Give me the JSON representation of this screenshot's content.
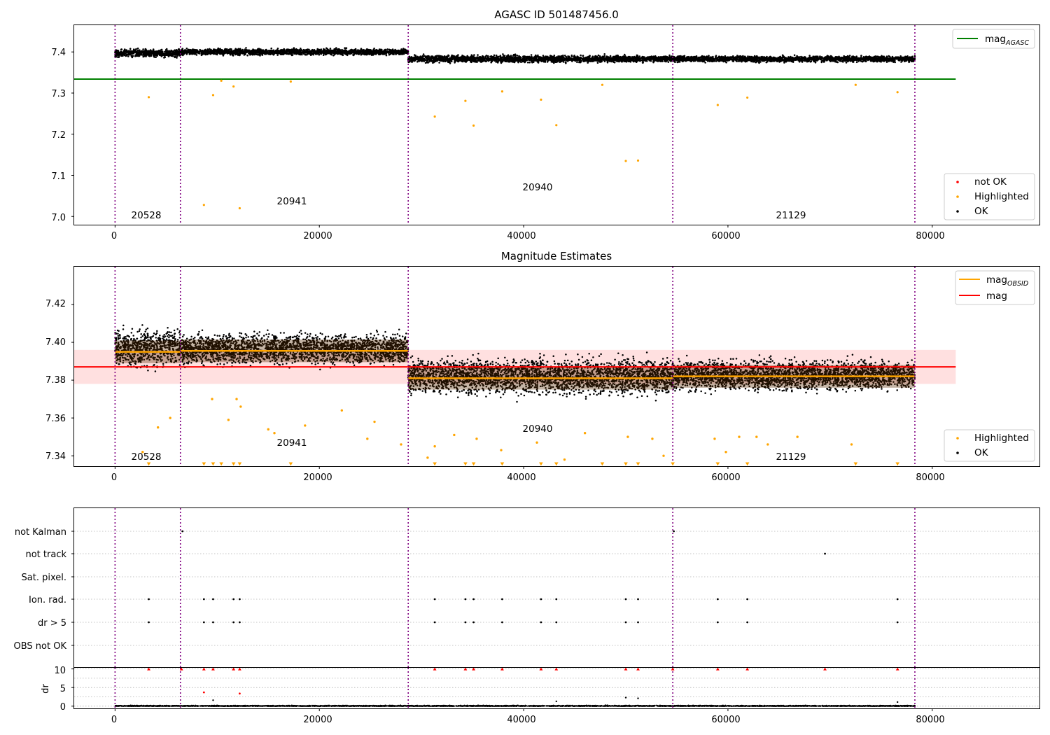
{
  "colors": {
    "ok": "#000000",
    "highlighted": "#ffa500",
    "not_ok": "#ff0000",
    "mag_agasc": "#008000",
    "mag": "#ff0000",
    "mag_obsid": "#ffa500",
    "obsid_line": "#800080",
    "mag_band": "#ffcccc"
  },
  "chart_data": [
    {
      "type": "scatter",
      "title": "AGASC ID 501487456.0",
      "xlim": [
        -4000,
        90500
      ],
      "ylim": [
        6.98,
        7.465
      ],
      "xticks": [
        0,
        20000,
        40000,
        60000,
        80000
      ],
      "xtick_labels": [
        "0",
        "20000",
        "40000",
        "60000",
        "80000"
      ],
      "yticks": [
        7.0,
        7.1,
        7.2,
        7.3,
        7.4
      ],
      "ytick_labels": [
        "7.0",
        "7.1",
        "7.2",
        "7.3",
        "7.4"
      ],
      "grid": false,
      "obsid_boundaries": [
        0,
        6400,
        28700,
        54600,
        78300
      ],
      "obsid_labels": [
        {
          "text": "20528",
          "x": 3200,
          "y": 7.0
        },
        {
          "text": "20941",
          "x": 17500,
          "y": 7.032
        },
        {
          "text": "20940",
          "x": 41500,
          "y": 7.067
        },
        {
          "text": "21129",
          "x": 66400,
          "y": 7.0
        }
      ],
      "reference_lines": [
        {
          "name": "mag_AGASC",
          "y": 7.334,
          "x": [
            -4000,
            82300
          ]
        }
      ],
      "segments": [
        {
          "x": [
            0,
            6400
          ],
          "center": 7.397,
          "spread": 0.009
        },
        {
          "x": [
            6400,
            28700
          ],
          "center": 7.4,
          "spread": 0.007
        },
        {
          "x": [
            28700,
            54600
          ],
          "center": 7.383,
          "spread": 0.008
        },
        {
          "x": [
            54600,
            78300
          ],
          "center": 7.383,
          "spread": 0.007
        }
      ],
      "highlighted_outliers": [
        [
          3300,
          7.29
        ],
        [
          8700,
          7.028
        ],
        [
          9600,
          7.295
        ],
        [
          10400,
          7.33
        ],
        [
          11600,
          7.316
        ],
        [
          12200,
          7.02
        ],
        [
          17200,
          7.328
        ],
        [
          31300,
          7.243
        ],
        [
          34300,
          7.281
        ],
        [
          35100,
          7.221
        ],
        [
          37900,
          7.304
        ],
        [
          41700,
          7.284
        ],
        [
          43200,
          7.222
        ],
        [
          47700,
          7.32
        ],
        [
          50000,
          7.135
        ],
        [
          51200,
          7.136
        ],
        [
          59000,
          7.271
        ],
        [
          61900,
          7.289
        ],
        [
          72500,
          7.32
        ],
        [
          76600,
          7.302
        ]
      ],
      "legend_top": {
        "position": "upper right",
        "entries": [
          {
            "label": "mag",
            "subscript": "AGASC"
          }
        ]
      },
      "legend_bottom": {
        "position": "lower right",
        "entries": [
          {
            "label": "not OK"
          },
          {
            "label": "Highlighted"
          },
          {
            "label": "OK"
          }
        ]
      }
    },
    {
      "type": "scatter",
      "title": "Magnitude Estimates",
      "xlim": [
        -4000,
        90500
      ],
      "ylim": [
        7.3345,
        7.44
      ],
      "xticks": [
        0,
        20000,
        40000,
        60000,
        80000
      ],
      "xtick_labels": [
        "0",
        "20000",
        "40000",
        "60000",
        "80000"
      ],
      "yticks": [
        7.34,
        7.36,
        7.38,
        7.4,
        7.42
      ],
      "ytick_labels": [
        "7.34",
        "7.36",
        "7.38",
        "7.40",
        "7.42"
      ],
      "grid": false,
      "obsid_boundaries": [
        0,
        6400,
        28700,
        54600,
        78300
      ],
      "obsid_labels": [
        {
          "text": "20528",
          "x": 3200,
          "y": 7.3375
        },
        {
          "text": "20941",
          "x": 17500,
          "y": 7.346
        },
        {
          "text": "20940",
          "x": 41500,
          "y": 7.3535
        },
        {
          "text": "21129",
          "x": 66400,
          "y": 7.3375
        }
      ],
      "mag": 7.387,
      "mag_band": [
        7.378,
        7.396
      ],
      "mag_obsid": [
        {
          "x": [
            0,
            6400
          ],
          "y": 7.395
        },
        {
          "x": [
            6400,
            28700
          ],
          "y": 7.3955
        },
        {
          "x": [
            28700,
            54600
          ],
          "y": 7.381
        },
        {
          "x": [
            54600,
            78300
          ],
          "y": 7.382
        }
      ],
      "segments": [
        {
          "x": [
            0,
            6400
          ],
          "low": 7.38,
          "high": 7.414
        },
        {
          "x": [
            6400,
            28700
          ],
          "low": 7.383,
          "high": 7.41
        },
        {
          "x": [
            28700,
            54600
          ],
          "low": 7.366,
          "high": 7.398
        },
        {
          "x": [
            54600,
            78300
          ],
          "low": 7.369,
          "high": 7.396
        }
      ],
      "clipped_below_x": [
        3300,
        8700,
        9600,
        10400,
        11600,
        12200,
        17200,
        31300,
        34300,
        35100,
        37900,
        41700,
        43200,
        47700,
        50000,
        51200,
        54600,
        59000,
        61900,
        72500,
        76600
      ],
      "highlighted_outliers": [
        [
          2700,
          7.342
        ],
        [
          4200,
          7.355
        ],
        [
          5400,
          7.36
        ],
        [
          9500,
          7.37
        ],
        [
          11100,
          7.359
        ],
        [
          11900,
          7.37
        ],
        [
          12300,
          7.366
        ],
        [
          15000,
          7.354
        ],
        [
          15600,
          7.352
        ],
        [
          18600,
          7.356
        ],
        [
          22200,
          7.364
        ],
        [
          24700,
          7.349
        ],
        [
          25400,
          7.358
        ],
        [
          28000,
          7.346
        ],
        [
          30600,
          7.339
        ],
        [
          31300,
          7.345
        ],
        [
          33200,
          7.351
        ],
        [
          35400,
          7.349
        ],
        [
          37800,
          7.343
        ],
        [
          41300,
          7.347
        ],
        [
          44000,
          7.338
        ],
        [
          46000,
          7.352
        ],
        [
          50200,
          7.35
        ],
        [
          52600,
          7.349
        ],
        [
          53700,
          7.34
        ],
        [
          58700,
          7.349
        ],
        [
          59800,
          7.342
        ],
        [
          61100,
          7.35
        ],
        [
          62800,
          7.35
        ],
        [
          63900,
          7.346
        ],
        [
          66800,
          7.35
        ],
        [
          72100,
          7.346
        ]
      ],
      "legend_top": {
        "position": "upper right",
        "entries": [
          {
            "label": "mag",
            "subscript": "OBSID"
          },
          {
            "label": "mag"
          }
        ]
      },
      "legend_bottom": {
        "position": "lower right",
        "entries": [
          {
            "label": "Highlighted"
          },
          {
            "label": "OK"
          }
        ]
      }
    },
    {
      "type": "scatter",
      "title": "",
      "xlim": [
        -4000,
        90500
      ],
      "categories": [
        "not Kalman",
        "not track",
        "Sat. pixel.",
        "Ion. rad.",
        "dr > 5",
        "OBS not OK"
      ],
      "grid": true,
      "obsid_boundaries": [
        0,
        6400,
        28700,
        54600,
        78300
      ],
      "flags": {
        "not Kalman": [
          6600,
          54700
        ],
        "not track": [
          69500
        ],
        "Sat. pixel.": [],
        "Ion. rad.": [
          3300,
          8700,
          9600,
          11600,
          12200,
          31300,
          34300,
          35100,
          37900,
          41700,
          43200,
          50000,
          51200,
          59000,
          61900,
          76600
        ],
        "dr > 5": [
          3300,
          8700,
          9600,
          11600,
          12200,
          31300,
          34300,
          35100,
          37900,
          41700,
          43200,
          50000,
          51200,
          59000,
          61900,
          76600
        ],
        "OBS not OK": []
      }
    },
    {
      "type": "scatter",
      "title": "",
      "ylabel": "dr",
      "xlim": [
        -4000,
        90500
      ],
      "ylim": [
        -0.6,
        10.3
      ],
      "xticks": [
        0,
        20000,
        40000,
        60000,
        80000
      ],
      "xtick_labels": [
        "0",
        "20000",
        "40000",
        "60000",
        "80000"
      ],
      "yticks": [
        0,
        5,
        10
      ],
      "ytick_labels": [
        "0",
        "5",
        "10"
      ],
      "grid": true,
      "obsid_boundaries": [
        0,
        6400,
        28700,
        54600,
        78300
      ],
      "clipped_at_top_x": [
        3300,
        6500,
        8700,
        9600,
        11600,
        12200,
        31300,
        34300,
        35100,
        37900,
        41700,
        43200,
        50000,
        51200,
        54600,
        59000,
        61900,
        69500,
        76600
      ],
      "red_points": [
        [
          8700,
          3.7
        ],
        [
          12200,
          3.4
        ]
      ],
      "black_outliers": [
        [
          9600,
          1.6
        ],
        [
          50000,
          2.3
        ],
        [
          51200,
          2.1
        ],
        [
          43200,
          1.3
        ],
        [
          76600,
          1.1
        ]
      ]
    }
  ]
}
